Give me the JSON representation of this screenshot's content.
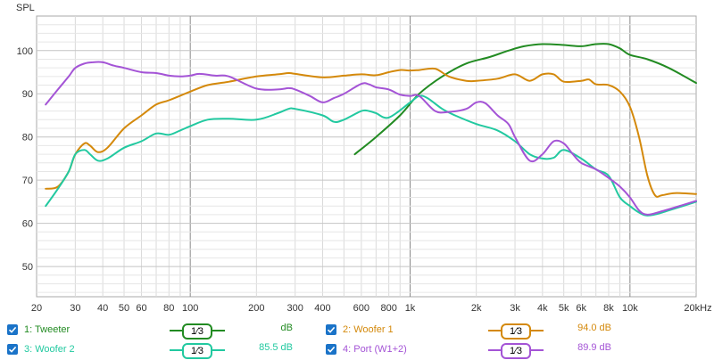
{
  "chart_data": {
    "type": "line",
    "title": "",
    "ylabel": "SPL",
    "xlabel": "",
    "xscale": "log",
    "xlim": [
      20,
      20000
    ],
    "ylim": [
      43,
      108
    ],
    "x_tick_labels": [
      {
        "v": 20,
        "t": "20"
      },
      {
        "v": 30,
        "t": "30"
      },
      {
        "v": 40,
        "t": "40"
      },
      {
        "v": 50,
        "t": "50"
      },
      {
        "v": 60,
        "t": "60"
      },
      {
        "v": 80,
        "t": "80"
      },
      {
        "v": 100,
        "t": "100"
      },
      {
        "v": 200,
        "t": "200"
      },
      {
        "v": 300,
        "t": "300"
      },
      {
        "v": 400,
        "t": "400"
      },
      {
        "v": 600,
        "t": "600"
      },
      {
        "v": 800,
        "t": "800"
      },
      {
        "v": 1000,
        "t": "1k"
      },
      {
        "v": 2000,
        "t": "2k"
      },
      {
        "v": 3000,
        "t": "3k"
      },
      {
        "v": 4000,
        "t": "4k"
      },
      {
        "v": 5000,
        "t": "5k"
      },
      {
        "v": 6000,
        "t": "6k"
      },
      {
        "v": 8000,
        "t": "8k"
      },
      {
        "v": 10000,
        "t": "10k"
      },
      {
        "v": 20000,
        "t": "20kHz"
      }
    ],
    "y_ticks": [
      50,
      60,
      70,
      80,
      90,
      100
    ],
    "grid": true,
    "series": [
      {
        "name": "1: Tweeter",
        "color": "#228b22",
        "x": [
          560,
          700,
          900,
          1100,
          1400,
          1800,
          2300,
          2800,
          3300,
          4000,
          5000,
          6000,
          7000,
          8000,
          9000,
          10000,
          12000,
          15000,
          20000
        ],
        "y": [
          76,
          80,
          85,
          90,
          94,
          97,
          98.5,
          100,
          101,
          101.5,
          101.3,
          101,
          101.5,
          101.5,
          100.5,
          99,
          98,
          96,
          92.5
        ]
      },
      {
        "name": "2: Woofer 1",
        "color": "#d4890b",
        "x": [
          22,
          25,
          28,
          30,
          33,
          35,
          38,
          42,
          50,
          60,
          70,
          80,
          100,
          120,
          150,
          200,
          250,
          280,
          300,
          400,
          500,
          600,
          700,
          800,
          900,
          1000,
          1100,
          1300,
          1500,
          1800,
          2000,
          2500,
          3000,
          3500,
          4000,
          4500,
          5000,
          6000,
          6500,
          7000,
          8000,
          9000,
          10000,
          11000,
          12000,
          13000,
          14000,
          16000,
          20000
        ],
        "y": [
          68,
          68.5,
          72,
          76,
          78.5,
          78,
          76.5,
          77.5,
          82,
          85,
          87.5,
          88.5,
          90.5,
          92,
          92.8,
          94,
          94.5,
          94.8,
          94.6,
          93.8,
          94.2,
          94.5,
          94.3,
          95,
          95.5,
          95.4,
          95.5,
          95.8,
          94,
          93,
          93,
          93.5,
          94.5,
          93,
          94.5,
          94.5,
          92.8,
          93,
          93.3,
          92.2,
          92,
          90.5,
          87,
          80,
          71,
          66.5,
          66.5,
          67,
          66.8
        ]
      },
      {
        "name": "3: Woofer 2",
        "color": "#22c9a0",
        "x": [
          22,
          25,
          28,
          30,
          33,
          35,
          38,
          42,
          50,
          60,
          70,
          80,
          90,
          100,
          120,
          150,
          200,
          250,
          280,
          300,
          400,
          450,
          500,
          600,
          650,
          700,
          800,
          1000,
          1100,
          1200,
          1400,
          1600,
          2000,
          2500,
          3000,
          3500,
          4000,
          4500,
          5000,
          6000,
          7000,
          8000,
          9000,
          10000,
          11000,
          12000,
          14000,
          20000
        ],
        "y": [
          64,
          68,
          72,
          76,
          77,
          76,
          74.5,
          75,
          77.5,
          79,
          80.8,
          80.5,
          81.5,
          82.5,
          84,
          84.2,
          84,
          85.5,
          86.5,
          86.5,
          85,
          83.5,
          84,
          86,
          86,
          85.5,
          84.5,
          88,
          89.5,
          89,
          86.5,
          85,
          83,
          81.5,
          79,
          76,
          75,
          75.2,
          77,
          75,
          72.5,
          71,
          66,
          64,
          62.5,
          61.8,
          62.5,
          65
        ]
      },
      {
        "name": "4: Port (W1+2)",
        "color": "#a454d6",
        "x": [
          22,
          25,
          28,
          30,
          33,
          36,
          40,
          45,
          50,
          60,
          70,
          80,
          90,
          100,
          110,
          130,
          150,
          200,
          250,
          280,
          300,
          350,
          400,
          450,
          500,
          600,
          650,
          700,
          800,
          900,
          1000,
          1100,
          1300,
          1500,
          1800,
          2000,
          2200,
          2500,
          2800,
          3000,
          3500,
          4000,
          4500,
          5000,
          5500,
          6000,
          7000,
          8000,
          9000,
          10000,
          11000,
          12000,
          14000,
          20000
        ],
        "y": [
          87.5,
          91,
          94,
          96,
          97,
          97.3,
          97.3,
          96.5,
          96,
          95,
          94.8,
          94.2,
          94,
          94.2,
          94.6,
          94.2,
          94,
          91.2,
          91,
          91.3,
          91,
          89.5,
          88,
          89,
          90,
          92.3,
          92.2,
          91.5,
          91,
          89.8,
          89.5,
          89.5,
          86,
          85.8,
          86.5,
          88,
          87.8,
          85,
          83,
          80,
          74.5,
          76,
          79,
          78.5,
          76,
          74,
          72.5,
          70.5,
          68.5,
          66,
          63,
          62,
          62.8,
          65.2
        ]
      }
    ]
  },
  "legend": {
    "smooth_symbol": "1⁄3",
    "items": [
      {
        "label": "1: Tweeter",
        "value": "dB",
        "color": "#228b22"
      },
      {
        "label": "2: Woofer 1",
        "value": "94.0 dB",
        "color": "#d4890b"
      },
      {
        "label": "3: Woofer 2",
        "value": "85.5 dB",
        "color": "#22c9a0"
      },
      {
        "label": "4: Port (W1+2)",
        "value": "89.9 dB",
        "color": "#a454d6"
      }
    ]
  }
}
